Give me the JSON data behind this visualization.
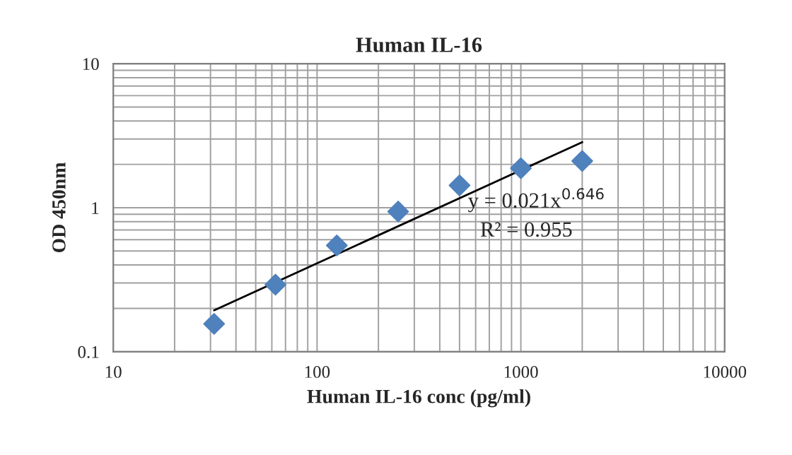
{
  "chart_data": {
    "type": "scatter",
    "title": "Human IL-16",
    "xlabel": "Human IL-16 conc (pg/ml)",
    "ylabel": "OD 450nm",
    "log": "xy",
    "xlim": [
      10,
      10000
    ],
    "ylim": [
      0.1,
      10
    ],
    "xticks": [
      10,
      100,
      1000,
      10000
    ],
    "yticks": [
      0.1,
      1,
      10
    ],
    "grid": true,
    "series": [
      {
        "color": "#4f81bd",
        "marker": "diamond",
        "x": [
          31.25,
          62.5,
          125,
          250,
          500,
          1000,
          2000
        ],
        "values": [
          0.156,
          0.292,
          0.547,
          0.94,
          1.43,
          1.88,
          2.11
        ]
      },
      {
        "type": "line",
        "color": "#000000",
        "marker": "none",
        "x": [
          31.25,
          2000
        ],
        "values": [
          0.194,
          2.85
        ]
      }
    ],
    "annotations": [
      "y = 0.021x$^{0.646}$",
      "R² = 0.955"
    ]
  }
}
